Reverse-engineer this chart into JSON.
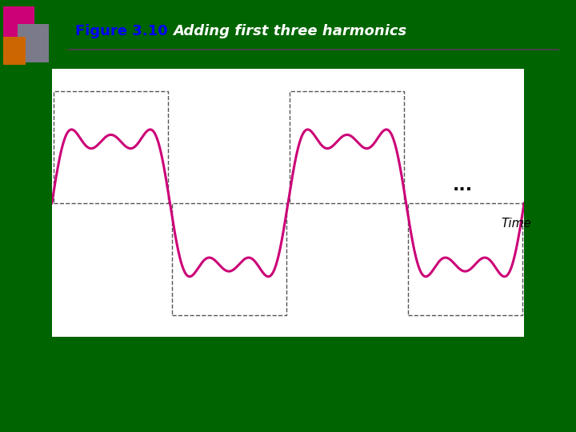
{
  "bg_color": "#006400",
  "plot_bg_color": "#ffffff",
  "line_color": "#cc0077",
  "line_width": 2.2,
  "axis_color": "#000000",
  "dashed_rect_color": "#555555",
  "dots_text": "...",
  "time_label": "Time",
  "title_color": "#0000ff",
  "subtitle_color": "#ffffff",
  "fig_width": 7.2,
  "fig_height": 5.4,
  "dpi": 100,
  "sq1_color": "#cc0077",
  "sq2_color": "#7a7a8a",
  "sq3_color": "#cc6600"
}
